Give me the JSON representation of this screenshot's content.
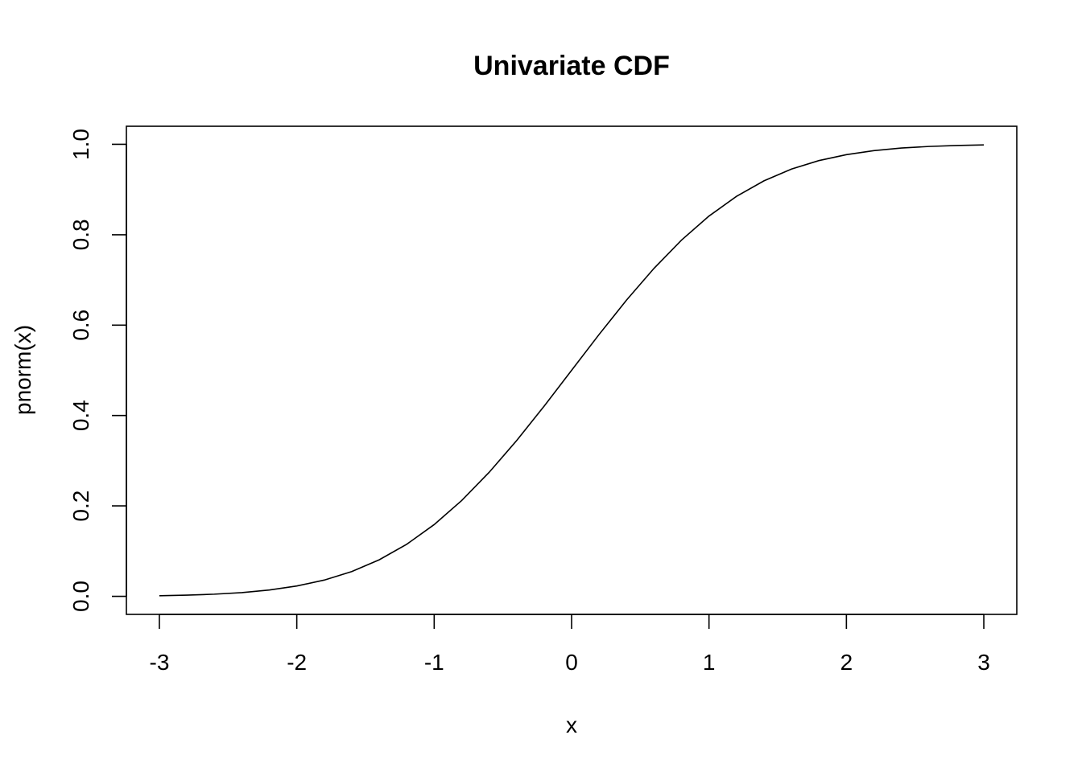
{
  "chart_data": {
    "type": "line",
    "title": "Univariate CDF",
    "xlabel": "x",
    "ylabel": "pnorm(x)",
    "xlim": [
      -3.24,
      3.24
    ],
    "ylim": [
      -0.04,
      1.04
    ],
    "x_ticks": [
      -3,
      -2,
      -1,
      0,
      1,
      2,
      3
    ],
    "x_tick_labels": [
      "-3",
      "-2",
      "-1",
      "0",
      "1",
      "2",
      "3"
    ],
    "y_ticks": [
      0,
      0.2,
      0.4,
      0.6,
      0.8,
      1.0
    ],
    "y_tick_labels": [
      "0.0",
      "0.2",
      "0.4",
      "0.6",
      "0.8",
      "1.0"
    ],
    "grid": false,
    "legend": "none",
    "series": [
      {
        "color": "#000000",
        "x": [
          -3,
          -2.8,
          -2.6,
          -2.4,
          -2.2,
          -2,
          -1.8,
          -1.6,
          -1.4,
          -1.2,
          -1,
          -0.8,
          -0.6,
          -0.4,
          -0.2,
          0,
          0.2,
          0.4,
          0.6,
          0.8,
          1,
          1.2,
          1.4,
          1.6,
          1.8,
          2,
          2.2,
          2.4,
          2.6,
          2.8,
          3
        ],
        "y": [
          0.0013,
          0.0026,
          0.0047,
          0.0082,
          0.0139,
          0.0228,
          0.0359,
          0.0548,
          0.0808,
          0.1151,
          0.1587,
          0.2119,
          0.2743,
          0.3446,
          0.4207,
          0.5,
          0.5793,
          0.6554,
          0.7257,
          0.7881,
          0.8413,
          0.8849,
          0.9192,
          0.9452,
          0.9641,
          0.9772,
          0.9861,
          0.9918,
          0.9953,
          0.9974,
          0.9987
        ]
      }
    ]
  }
}
